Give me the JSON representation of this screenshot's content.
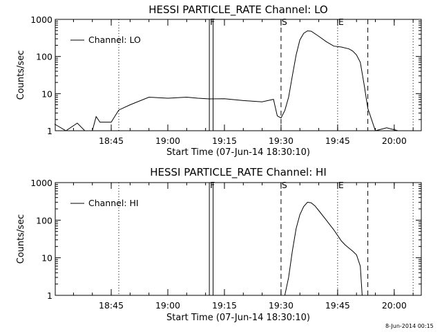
{
  "footer": "8-Jun-2014 00:15",
  "chart_data": [
    {
      "type": "line",
      "title": "HESSI PARTICLE_RATE Channel: LO",
      "xlabel": "Start Time (07-Jun-14 18:30:10)",
      "ylabel": "Counts/sec",
      "legend": "Channel: LO",
      "legend_position": "top-left",
      "yscale": "log",
      "ylim": [
        1,
        1000
      ],
      "xlim": [
        "18:30:10",
        "20:07:10"
      ],
      "xtick_labels": [
        "18:45",
        "19:00",
        "19:15",
        "19:30",
        "19:45",
        "20:00"
      ],
      "ytick_labels": [
        "1",
        "10",
        "100",
        "1000"
      ],
      "markers": [
        {
          "label": "F",
          "time": "19:11",
          "style": "solid"
        },
        {
          "label": "S",
          "time": "19:30",
          "style": "dashed"
        },
        {
          "label": "E",
          "time": "19:45",
          "style": "dotted"
        }
      ],
      "vertical_lines": [
        {
          "time": "18:47",
          "style": "dotted"
        },
        {
          "time": "19:11",
          "style": "solid"
        },
        {
          "time": "19:12",
          "style": "solid"
        },
        {
          "time": "19:30",
          "style": "dashed"
        },
        {
          "time": "19:45",
          "style": "dotted"
        },
        {
          "time": "19:53",
          "style": "dashed"
        },
        {
          "time": "20:05",
          "style": "dotted"
        }
      ],
      "series": [
        {
          "name": "Channel: LO",
          "x": [
            "18:30",
            "18:33",
            "18:36",
            "18:38",
            "18:40",
            "18:41",
            "18:42",
            "18:45",
            "18:47",
            "18:50",
            "18:55",
            "19:00",
            "19:05",
            "19:08",
            "19:11",
            "19:15",
            "19:20",
            "19:25",
            "19:28",
            "19:29",
            "19:30",
            "19:31",
            "19:32",
            "19:33",
            "19:34",
            "19:35",
            "19:36",
            "19:37",
            "19:38",
            "19:40",
            "19:42",
            "19:44",
            "19:46",
            "19:48",
            "19:49",
            "19:50",
            "19:51",
            "19:52",
            "19:53",
            "19:55",
            "19:58",
            "20:01",
            "20:05"
          ],
          "y": [
            1.5,
            1.0,
            1.6,
            1.0,
            1.0,
            2.4,
            1.7,
            1.7,
            3.6,
            5.0,
            8.0,
            7.5,
            8.0,
            7.5,
            7.2,
            7.3,
            6.5,
            6.0,
            7.0,
            2.5,
            2.2,
            3.5,
            8.0,
            30,
            110,
            280,
            420,
            490,
            480,
            350,
            250,
            190,
            180,
            160,
            140,
            110,
            70,
            18,
            4.0,
            1.0,
            1.2,
            1.0,
            1.0
          ]
        }
      ]
    },
    {
      "type": "line",
      "title": "HESSI PARTICLE_RATE Channel: HI",
      "xlabel": "Start Time (07-Jun-14 18:30:10)",
      "ylabel": "Counts/sec",
      "legend": "Channel: HI",
      "legend_position": "top-left",
      "yscale": "log",
      "ylim": [
        1,
        1000
      ],
      "xlim": [
        "18:30:10",
        "20:07:10"
      ],
      "xtick_labels": [
        "18:45",
        "19:00",
        "19:15",
        "19:30",
        "19:45",
        "20:00"
      ],
      "ytick_labels": [
        "1",
        "10",
        "100",
        "1000"
      ],
      "markers": [
        {
          "label": "F",
          "time": "19:11",
          "style": "solid"
        },
        {
          "label": "S",
          "time": "19:30",
          "style": "dashed"
        },
        {
          "label": "E",
          "time": "19:45",
          "style": "dotted"
        }
      ],
      "vertical_lines": [
        {
          "time": "18:47",
          "style": "dotted"
        },
        {
          "time": "19:11",
          "style": "solid"
        },
        {
          "time": "19:12",
          "style": "solid"
        },
        {
          "time": "19:30",
          "style": "dashed"
        },
        {
          "time": "19:45",
          "style": "dotted"
        },
        {
          "time": "19:53",
          "style": "dashed"
        },
        {
          "time": "20:05",
          "style": "dotted"
        }
      ],
      "series": [
        {
          "name": "Channel: HI",
          "x": [
            "19:31",
            "19:32",
            "19:33",
            "19:34",
            "19:35",
            "19:36",
            "19:37",
            "19:38",
            "19:39",
            "19:40",
            "19:42",
            "19:44",
            "19:46",
            "19:47",
            "19:48",
            "19:49",
            "19:50",
            "19:51",
            "19:51:30"
          ],
          "y": [
            1.0,
            3.0,
            15,
            60,
            140,
            230,
            300,
            290,
            240,
            180,
            100,
            55,
            28,
            22,
            18,
            15,
            12,
            6,
            1.0
          ]
        }
      ]
    }
  ]
}
